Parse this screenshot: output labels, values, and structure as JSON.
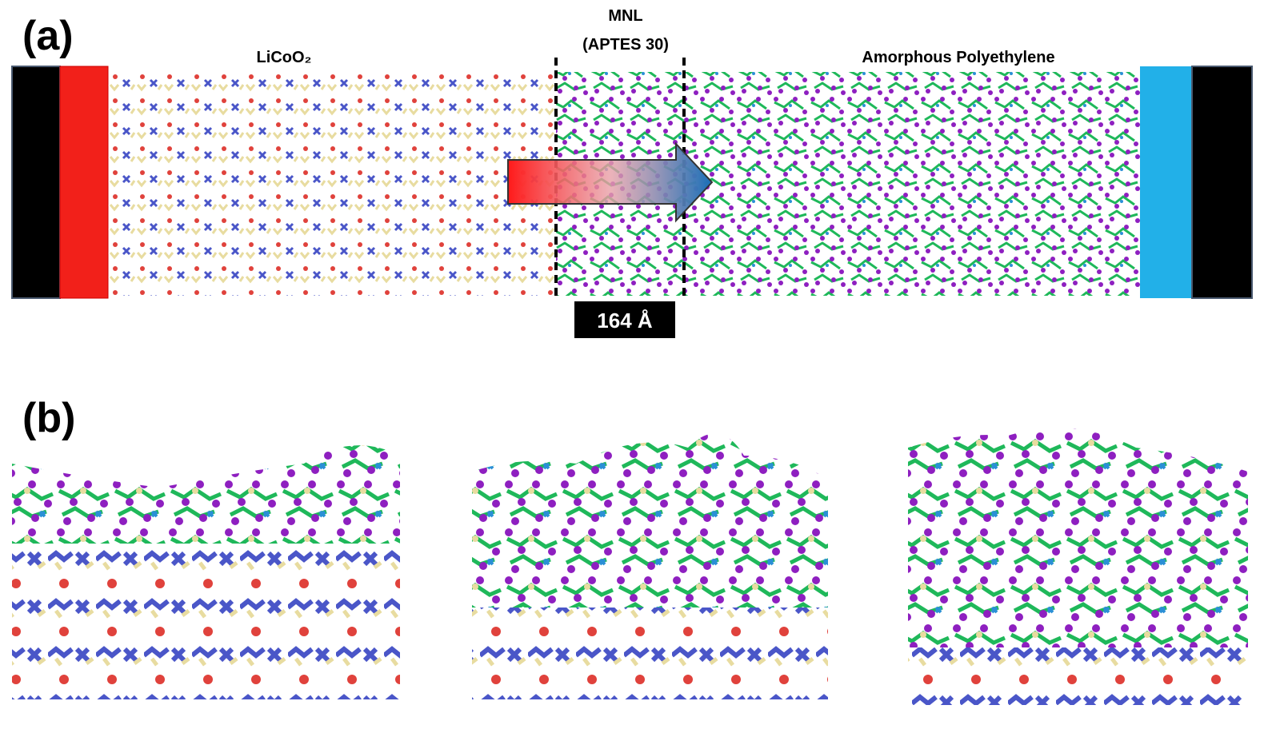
{
  "panel_a": {
    "label": "(a)",
    "left_region": "LiCoO₂",
    "middle_region_title": "MNL",
    "middle_region_subtitle": "(APTES 30)",
    "right_region": "Amorphous Polyethylene",
    "thickness": "164 Å"
  },
  "panel_b": {
    "label": "(b)"
  }
}
